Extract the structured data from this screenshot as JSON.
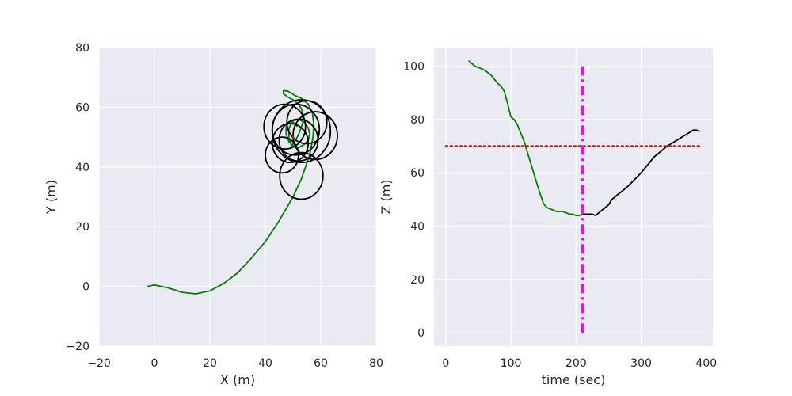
{
  "chart_data": [
    {
      "type": "line",
      "xlabel": "X (m)",
      "ylabel": "Y (m)",
      "xlim": [
        -20,
        80
      ],
      "ylim": [
        -20,
        80
      ],
      "xticks": [
        -20,
        0,
        20,
        40,
        60,
        80
      ],
      "yticks": [
        -20,
        0,
        20,
        40,
        60,
        80
      ],
      "grid": true,
      "style": "seaborn-darkgrid",
      "colors": {
        "approach": "#008000",
        "orbit": "#000000",
        "target": "#ff0000",
        "background": "#eaeaf2",
        "grid": "#ffffff"
      },
      "series": [
        {
          "color": "#008000",
          "x": [
            -2.5,
            0,
            5,
            10,
            15,
            20,
            25,
            30,
            35,
            40,
            45,
            50,
            53,
            56,
            57.2,
            57.5,
            57,
            55.5,
            53,
            50.5,
            48,
            46.5,
            46.5,
            48,
            50,
            52,
            53,
            53.5,
            53.5,
            52.5,
            51,
            49.5,
            48.5,
            48.5,
            50,
            52,
            54,
            55.5,
            56,
            55.5,
            54,
            52,
            50,
            48.5,
            47.5,
            47.5,
            48.5,
            50,
            51.5
          ],
          "y": [
            0,
            0.5,
            -0.5,
            -2,
            -2.5,
            -1.5,
            1,
            4.5,
            9.5,
            15,
            22,
            30,
            36,
            44,
            50,
            54,
            58,
            61,
            63,
            64,
            65.5,
            65.5,
            64.5,
            63.5,
            62.5,
            61,
            59.5,
            58,
            55,
            52,
            49,
            47,
            49.5,
            53,
            55.5,
            56,
            55,
            53,
            51,
            49,
            47.5,
            46.5,
            47,
            48.5,
            51,
            53.5,
            55,
            55,
            53.5
          ]
        },
        {
          "color": "#000000",
          "type": "circles",
          "circles": [
            {
              "cx": 53,
              "cy": 52,
              "r": 10.5
            },
            {
              "cx": 47,
              "cy": 53.5,
              "r": 7.5
            },
            {
              "cx": 52,
              "cy": 49,
              "r": 7
            },
            {
              "cx": 46,
              "cy": 44,
              "r": 6
            },
            {
              "cx": 53,
              "cy": 37,
              "r": 7.8
            },
            {
              "cx": 58,
              "cy": 50.5,
              "r": 8
            },
            {
              "cx": 51,
              "cy": 52.5,
              "r": 8.5
            },
            {
              "cx": 55,
              "cy": 55,
              "r": 7.2
            },
            {
              "cx": 49,
              "cy": 48,
              "r": 6.5
            }
          ]
        },
        {
          "color": "#ff0000",
          "type": "marker",
          "x": [
            50
          ],
          "y": [
            50
          ]
        }
      ]
    },
    {
      "type": "line",
      "xlabel": "time (sec)",
      "ylabel": "Z (m)",
      "xlim": [
        -18,
        410
      ],
      "ylim": [
        -5,
        107
      ],
      "xticks": [
        0,
        100,
        200,
        300,
        400
      ],
      "yticks": [
        0,
        20,
        40,
        60,
        80,
        100
      ],
      "grid": true,
      "series": [
        {
          "color": "#008000",
          "x": [
            35,
            38,
            40,
            45,
            50,
            55,
            60,
            65,
            70,
            75,
            80,
            85,
            90,
            95,
            100,
            105,
            110,
            115,
            120,
            125,
            130,
            135,
            140,
            145,
            150,
            155,
            160,
            165,
            170,
            175,
            180,
            185,
            190,
            195,
            200,
            205,
            210
          ],
          "y": [
            102,
            101.5,
            101,
            100,
            99.5,
            99,
            98.5,
            97.5,
            96.5,
            95,
            93.5,
            92.5,
            90.5,
            86,
            81,
            80,
            78,
            75,
            72,
            68,
            64,
            60,
            56,
            52,
            48.5,
            47,
            46.5,
            46,
            45.5,
            45.5,
            45.5,
            45,
            44.5,
            44.5,
            44,
            44,
            44.5
          ]
        },
        {
          "color": "#000000",
          "x": [
            210,
            215,
            220,
            225,
            230,
            235,
            240,
            245,
            250,
            255,
            260,
            265,
            270,
            275,
            280,
            290,
            300,
            310,
            320,
            330,
            340,
            350,
            360,
            370,
            380,
            385,
            390
          ],
          "y": [
            44.5,
            44.5,
            44.5,
            44.5,
            44,
            45,
            46,
            47,
            48,
            50,
            51,
            52,
            53,
            54,
            55,
            57.5,
            60,
            63,
            66,
            68,
            70,
            71.5,
            73,
            74.5,
            76,
            76,
            75.5
          ]
        },
        {
          "color": "#ff0000",
          "style": "dotted",
          "x": [
            0,
            390
          ],
          "y": [
            70,
            70
          ]
        },
        {
          "color": "#ff00ff",
          "style": "dashdot",
          "x": [
            210,
            210
          ],
          "y": [
            0,
            100
          ]
        }
      ]
    }
  ]
}
